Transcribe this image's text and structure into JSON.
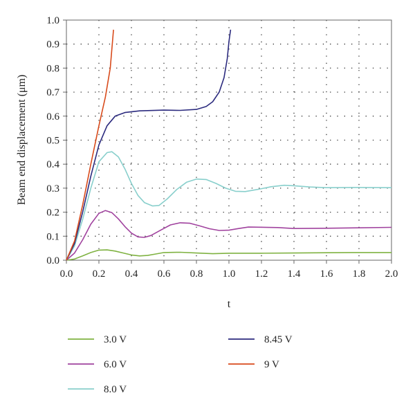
{
  "chart_data": {
    "type": "line",
    "title": "",
    "xlabel": "t",
    "ylabel": "Beam end displacement (μm)",
    "xlim": [
      0,
      2.0
    ],
    "ylim": [
      0,
      1.0
    ],
    "x_ticks": [
      "0.0",
      "0.2",
      "0.4",
      "0.6",
      "0.8",
      "1.0",
      "1.2",
      "1.4",
      "1.6",
      "1.8",
      "2.0"
    ],
    "y_ticks": [
      "0.0",
      "0.1",
      "0.2",
      "0.3",
      "0.4",
      "0.5",
      "0.6",
      "0.7",
      "0.8",
      "0.9",
      "1.0"
    ],
    "grid": "dotted",
    "legend_position": "bottom",
    "series": [
      {
        "name": "3.0 V",
        "color": "#7fb241",
        "points": [
          [
            0,
            0
          ],
          [
            0.05,
            0.005
          ],
          [
            0.1,
            0.018
          ],
          [
            0.15,
            0.032
          ],
          [
            0.2,
            0.042
          ],
          [
            0.25,
            0.043
          ],
          [
            0.3,
            0.038
          ],
          [
            0.35,
            0.03
          ],
          [
            0.4,
            0.022
          ],
          [
            0.45,
            0.018
          ],
          [
            0.5,
            0.02
          ],
          [
            0.55,
            0.026
          ],
          [
            0.6,
            0.032
          ],
          [
            0.7,
            0.033
          ],
          [
            0.8,
            0.03
          ],
          [
            0.9,
            0.027
          ],
          [
            1.0,
            0.029
          ],
          [
            1.2,
            0.029
          ],
          [
            1.4,
            0.03
          ],
          [
            1.6,
            0.031
          ],
          [
            1.8,
            0.032
          ],
          [
            2.0,
            0.032
          ]
        ]
      },
      {
        "name": "6.0 V",
        "color": "#a0429e",
        "points": [
          [
            0,
            0
          ],
          [
            0.05,
            0.03
          ],
          [
            0.1,
            0.085
          ],
          [
            0.15,
            0.15
          ],
          [
            0.2,
            0.195
          ],
          [
            0.24,
            0.207
          ],
          [
            0.28,
            0.198
          ],
          [
            0.32,
            0.172
          ],
          [
            0.36,
            0.14
          ],
          [
            0.4,
            0.113
          ],
          [
            0.44,
            0.097
          ],
          [
            0.48,
            0.095
          ],
          [
            0.52,
            0.103
          ],
          [
            0.58,
            0.125
          ],
          [
            0.64,
            0.147
          ],
          [
            0.7,
            0.156
          ],
          [
            0.76,
            0.154
          ],
          [
            0.82,
            0.143
          ],
          [
            0.88,
            0.131
          ],
          [
            0.94,
            0.124
          ],
          [
            1.0,
            0.125
          ],
          [
            1.06,
            0.132
          ],
          [
            1.12,
            0.138
          ],
          [
            1.3,
            0.136
          ],
          [
            1.4,
            0.132
          ],
          [
            1.6,
            0.133
          ],
          [
            1.8,
            0.135
          ],
          [
            2.0,
            0.137
          ]
        ]
      },
      {
        "name": "8.0 V",
        "color": "#88cfcc",
        "points": [
          [
            0,
            0
          ],
          [
            0.05,
            0.06
          ],
          [
            0.1,
            0.17
          ],
          [
            0.15,
            0.3
          ],
          [
            0.2,
            0.41
          ],
          [
            0.25,
            0.448
          ],
          [
            0.28,
            0.452
          ],
          [
            0.32,
            0.43
          ],
          [
            0.36,
            0.38
          ],
          [
            0.4,
            0.32
          ],
          [
            0.44,
            0.27
          ],
          [
            0.48,
            0.24
          ],
          [
            0.53,
            0.226
          ],
          [
            0.57,
            0.228
          ],
          [
            0.62,
            0.255
          ],
          [
            0.68,
            0.295
          ],
          [
            0.74,
            0.325
          ],
          [
            0.8,
            0.338
          ],
          [
            0.86,
            0.336
          ],
          [
            0.92,
            0.32
          ],
          [
            0.98,
            0.3
          ],
          [
            1.04,
            0.287
          ],
          [
            1.1,
            0.286
          ],
          [
            1.18,
            0.295
          ],
          [
            1.26,
            0.306
          ],
          [
            1.34,
            0.312
          ],
          [
            1.4,
            0.31
          ],
          [
            1.5,
            0.305
          ],
          [
            1.6,
            0.302
          ],
          [
            1.8,
            0.303
          ],
          [
            2.0,
            0.302
          ]
        ]
      },
      {
        "name": "8.45 V",
        "color": "#2b2a7e",
        "points": [
          [
            0,
            0
          ],
          [
            0.05,
            0.07
          ],
          [
            0.1,
            0.2
          ],
          [
            0.15,
            0.35
          ],
          [
            0.2,
            0.48
          ],
          [
            0.25,
            0.56
          ],
          [
            0.3,
            0.6
          ],
          [
            0.36,
            0.615
          ],
          [
            0.45,
            0.622
          ],
          [
            0.6,
            0.625
          ],
          [
            0.7,
            0.624
          ],
          [
            0.8,
            0.628
          ],
          [
            0.86,
            0.64
          ],
          [
            0.9,
            0.66
          ],
          [
            0.94,
            0.7
          ],
          [
            0.97,
            0.76
          ],
          [
            0.99,
            0.84
          ],
          [
            1.0,
            0.91
          ],
          [
            1.01,
            0.96
          ]
        ]
      },
      {
        "name": "9 V",
        "color": "#d84a1b",
        "points": [
          [
            0,
            0
          ],
          [
            0.05,
            0.08
          ],
          [
            0.1,
            0.23
          ],
          [
            0.15,
            0.4
          ],
          [
            0.2,
            0.56
          ],
          [
            0.24,
            0.68
          ],
          [
            0.27,
            0.8
          ],
          [
            0.29,
            0.96
          ]
        ]
      }
    ]
  }
}
